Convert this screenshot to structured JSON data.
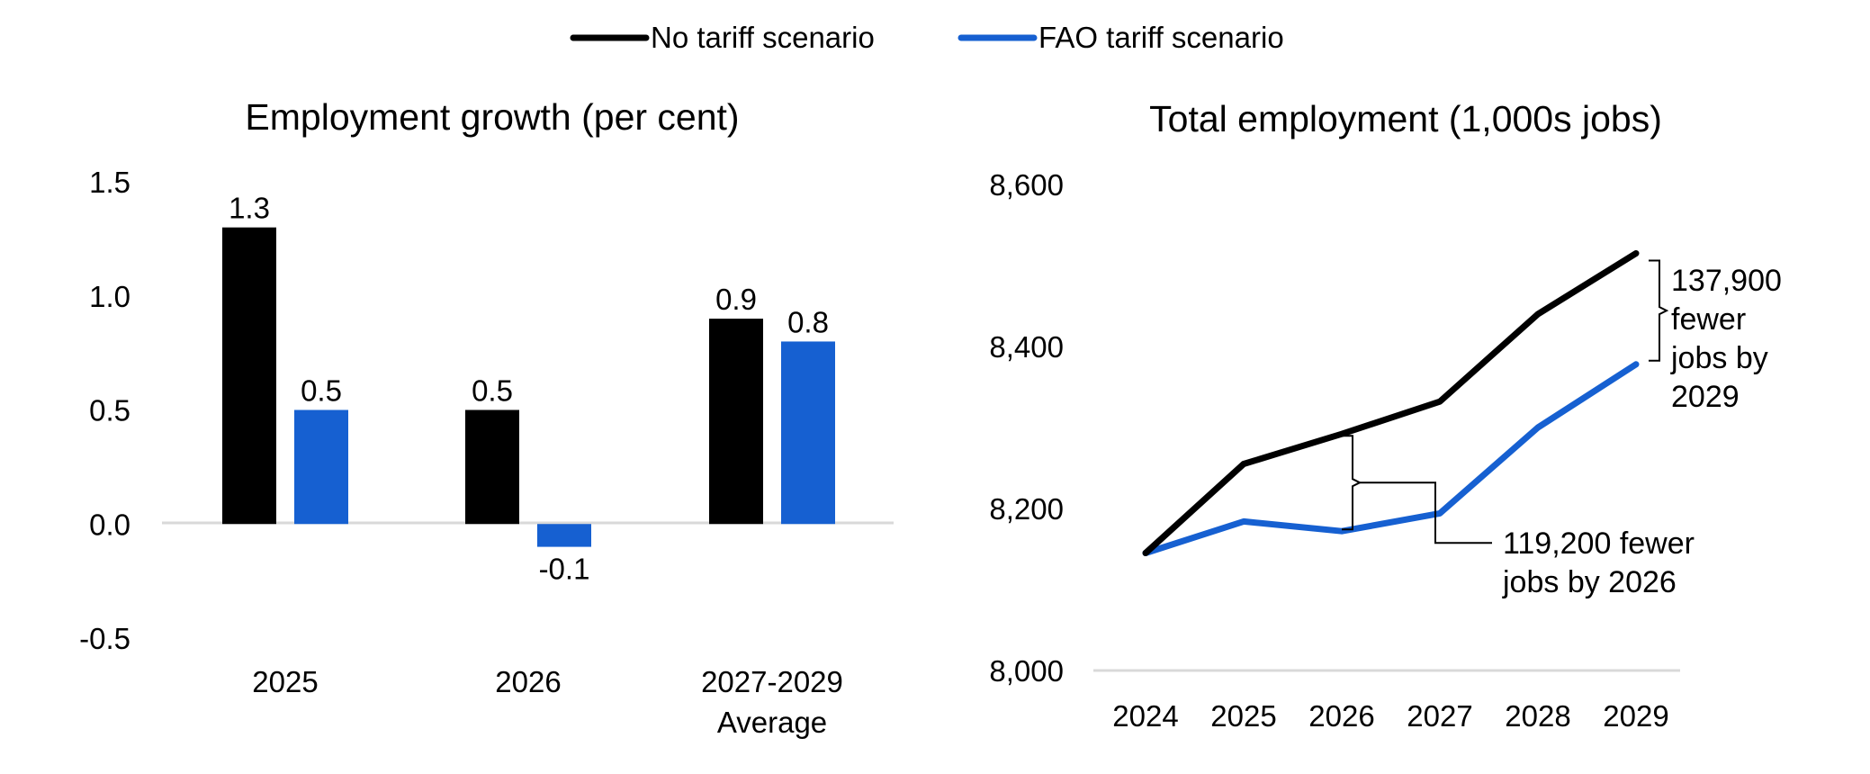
{
  "legend": [
    {
      "label": "No tariff scenario",
      "color": "#000000"
    },
    {
      "label": "FAO tariff scenario",
      "color": "#1660d1"
    }
  ],
  "chart_data": [
    {
      "type": "bar",
      "title": "Employment growth (per cent)",
      "categories": [
        [
          "2025"
        ],
        [
          "2026"
        ],
        [
          "2027-2029",
          "Average"
        ]
      ],
      "series": [
        {
          "name": "No tariff scenario",
          "color": "#000000",
          "values": [
            1.3,
            0.5,
            0.9
          ],
          "labels": [
            "1.3",
            "0.5",
            "0.9"
          ]
        },
        {
          "name": "FAO tariff scenario",
          "color": "#1660d1",
          "values": [
            0.5,
            -0.1,
            0.8
          ],
          "labels": [
            "0.5",
            "-0.1",
            "0.8"
          ]
        }
      ],
      "ylim": [
        -0.5,
        1.5
      ],
      "yticks": [
        "-0.5",
        "0.0",
        "0.5",
        "1.0",
        "1.5"
      ],
      "grid": false
    },
    {
      "type": "line",
      "title": "Total employment (1,000s jobs)",
      "x": [
        "2024",
        "2025",
        "2026",
        "2027",
        "2028",
        "2029"
      ],
      "series": [
        {
          "name": "No tariff scenario",
          "color": "#000000",
          "values": [
            8145,
            8255,
            8292,
            8332,
            8440,
            8515
          ]
        },
        {
          "name": "FAO tariff scenario",
          "color": "#1660d1",
          "values": [
            8145,
            8184,
            8172,
            8194,
            8300,
            8378
          ]
        }
      ],
      "ylim": [
        8000,
        8600
      ],
      "yticks": [
        "8,000",
        "8,200",
        "8,400",
        "8,600"
      ],
      "grid": false,
      "annotations": [
        {
          "lines": [
            "119,200 fewer",
            "jobs by 2026"
          ]
        },
        {
          "lines": [
            "137,900",
            "fewer",
            "jobs by",
            "2029"
          ]
        }
      ]
    }
  ]
}
